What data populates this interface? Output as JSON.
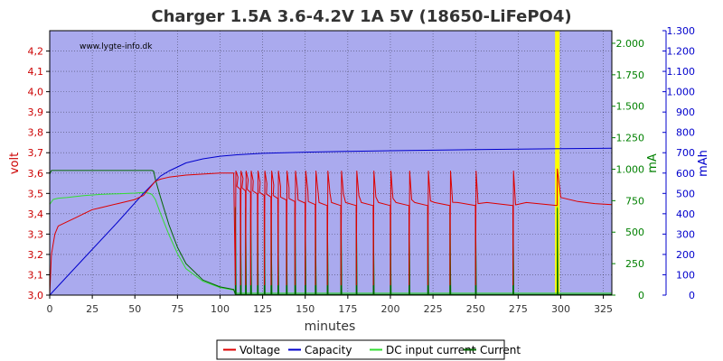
{
  "chart_data": {
    "type": "line",
    "title": "Charger 1.5A 3.6-4.2V 1A 5V (18650-LiFePO4)",
    "watermark": "www.lygte-info.dk",
    "xlabel": "minutes",
    "xlim": [
      0,
      330
    ],
    "x_ticks": [
      0,
      25,
      50,
      75,
      100,
      125,
      150,
      175,
      200,
      225,
      250,
      275,
      300,
      325
    ],
    "left_axis": {
      "label": "volt",
      "color": "#cc0000",
      "ylim": [
        3.0,
        4.3
      ],
      "ticks": [
        3.0,
        3.1,
        3.2,
        3.3,
        3.4,
        3.5,
        3.6,
        3.7,
        3.8,
        3.9,
        4.0,
        4.1,
        4.2
      ],
      "tick_labels": [
        "3,0",
        "3,1",
        "3,2",
        "3,3",
        "3,4",
        "3,5",
        "3,6",
        "3,7",
        "3,8",
        "3,9",
        "4,0",
        "4,1",
        "4,2"
      ]
    },
    "right_axis_1": {
      "label": "mA",
      "color": "#008000",
      "ylim": [
        0,
        2100
      ],
      "ticks": [
        0,
        250,
        500,
        750,
        1000,
        1250,
        1500,
        1750,
        2000
      ],
      "tick_labels": [
        "0",
        "250",
        "500",
        "750",
        "1.000",
        "1.250",
        "1.500",
        "1.750",
        "2.000"
      ]
    },
    "right_axis_2": {
      "label": "mAh",
      "color": "#0000cc",
      "ylim": [
        0,
        1300
      ],
      "ticks": [
        0,
        100,
        200,
        300,
        400,
        500,
        600,
        700,
        800,
        900,
        1000,
        1100,
        1200,
        1300
      ],
      "tick_labels": [
        "0",
        "100",
        "200",
        "300",
        "400",
        "500",
        "600",
        "700",
        "800",
        "900",
        "1.000",
        "1.100",
        "1.200",
        "1.300"
      ]
    },
    "grid": true,
    "legend_position": "bottom",
    "background_color": "#aaaaee",
    "marker": {
      "x": 298,
      "color": "#ffff00"
    },
    "series": [
      {
        "name": "Voltage",
        "color": "#dd0000",
        "axis": "left",
        "x": [
          0,
          1,
          3,
          5,
          10,
          15,
          20,
          25,
          30,
          40,
          50,
          55,
          58,
          60,
          62,
          65,
          70,
          80,
          90,
          100,
          108
        ],
        "y": [
          3.0,
          3.2,
          3.3,
          3.34,
          3.36,
          3.38,
          3.4,
          3.42,
          3.43,
          3.45,
          3.47,
          3.49,
          3.52,
          3.54,
          3.56,
          3.57,
          3.58,
          3.59,
          3.595,
          3.6,
          3.6
        ],
        "pulse_times": [
          109,
          112,
          115,
          118,
          122,
          126,
          130,
          134,
          139,
          144,
          150,
          156,
          163,
          171,
          180,
          190,
          200,
          211,
          222,
          235,
          250,
          272,
          298
        ],
        "pulse_peak": 3.61,
        "pulse_decay_min": 3.44,
        "tail": {
          "x": [
            298,
            300,
            310,
            320,
            330
          ],
          "y": [
            3.62,
            3.48,
            3.46,
            3.45,
            3.445
          ]
        }
      },
      {
        "name": "Capacity",
        "color": "#0000cc",
        "axis": "right_2",
        "x": [
          0,
          20,
          40,
          55,
          62,
          65,
          70,
          75,
          80,
          90,
          100,
          110,
          125,
          150,
          175,
          200,
          250,
          300,
          330
        ],
        "y": [
          0,
          180,
          360,
          500,
          560,
          585,
          610,
          630,
          650,
          670,
          683,
          690,
          697,
          703,
          707,
          710,
          715,
          720,
          722
        ]
      },
      {
        "name": "DC input current",
        "color": "#33dd33",
        "axis": "right_1",
        "x": [
          0,
          2,
          5,
          10,
          20,
          30,
          40,
          50,
          55,
          58,
          60,
          62,
          65,
          70,
          75,
          80,
          90,
          100,
          108
        ],
        "y": [
          720,
          760,
          770,
          775,
          790,
          800,
          805,
          810,
          815,
          810,
          800,
          760,
          650,
          480,
          330,
          210,
          110,
          60,
          40
        ],
        "pulse_times": [
          109,
          112,
          115,
          118,
          122,
          126,
          130,
          134,
          139,
          144,
          150,
          156,
          163,
          171,
          180,
          190,
          200,
          211,
          222,
          235,
          250,
          272,
          298
        ],
        "pulse_peak": 700,
        "baseline_after": 15
      },
      {
        "name": "Current",
        "color": "#006600",
        "axis": "right_1",
        "x": [
          0,
          1,
          3,
          10,
          30,
          50,
          60,
          61,
          62,
          65,
          70,
          75,
          80,
          90,
          100,
          108
        ],
        "y": [
          960,
          990,
          990,
          990,
          990,
          990,
          990,
          985,
          920,
          780,
          560,
          380,
          250,
          120,
          65,
          45
        ],
        "pulse_times": [
          109,
          112,
          115,
          118,
          122,
          126,
          130,
          134,
          139,
          144,
          150,
          156,
          163,
          171,
          180,
          190,
          200,
          211,
          222,
          235,
          250,
          272,
          298
        ],
        "pulse_peak": 690,
        "baseline_after": 5
      }
    ]
  }
}
